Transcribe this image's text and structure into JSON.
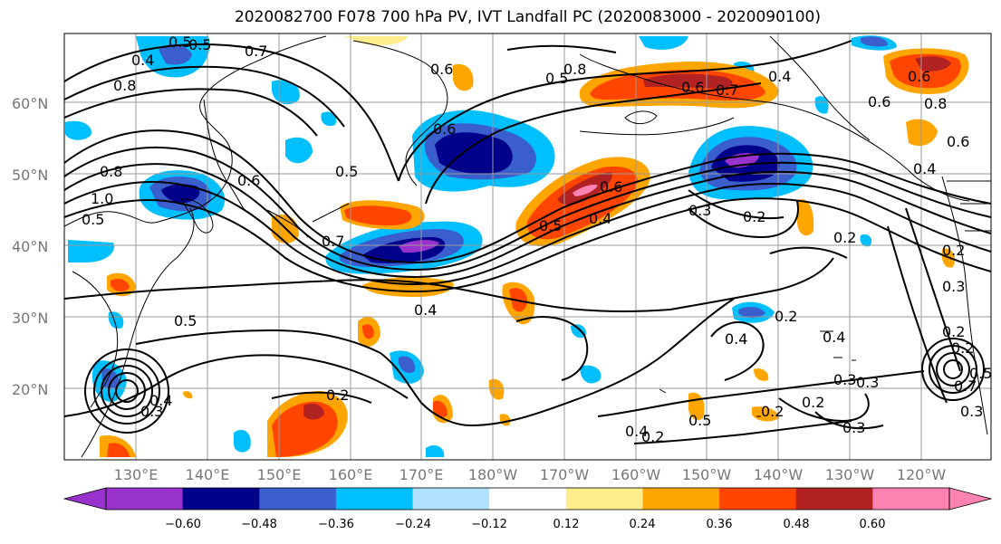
{
  "title": "2020082700 F078 700 hPa PV, IVT Landfall PC (2020083000 - 2020090100)",
  "lat_labels": [
    "60°N",
    "50°N",
    "40°N",
    "30°N",
    "20°N"
  ],
  "lon_labels": [
    "130°E",
    "140°E",
    "150°E",
    "160°E",
    "170°E",
    "180°W",
    "170°W",
    "160°W",
    "150°W",
    "140°W",
    "130°W",
    "120°W"
  ],
  "colorbar": {
    "ticks": [
      "−0.60",
      "−0.48",
      "−0.36",
      "−0.24",
      "−0.12",
      "0.12",
      "0.24",
      "0.36",
      "0.48",
      "0.60"
    ],
    "colors": [
      "#9932cc",
      "#00008b",
      "#3a5fcd",
      "#00bfff",
      "#b0e2ff",
      "#ffffff",
      "#ffec8b",
      "#ffa500",
      "#ff4500",
      "#b22222",
      "#ff83b2"
    ]
  },
  "contour_labels": [
    "0.5",
    "0.7",
    "0.4",
    "0.8",
    "0.6",
    "0.5",
    "0.8",
    "0.6",
    "0.7",
    "0.4",
    "0.5",
    "0.6",
    "0.6",
    "0.8",
    "0.6",
    "0.4",
    "0.6",
    "0.5",
    "0.7",
    "0.4",
    "0.6",
    "0.8",
    "1.0",
    "0.5",
    "0.6",
    "0.5",
    "0.4",
    "0.3",
    "0.2",
    "0.2",
    "0.3",
    "0.2",
    "0.4",
    "0.2",
    "0.3",
    "0.5",
    "0.2",
    "0.4",
    "0.2",
    "0.5",
    "0.4",
    "0.3",
    "0.2",
    "0.3",
    "0.2",
    "0.7",
    "0.5",
    "0.3",
    "0.2",
    "0.2",
    "0.3",
    "0.4"
  ],
  "colors": {
    "grid": "#9a9a9a",
    "coast": "#000000",
    "contour": "#000000",
    "axis_label": "#777777"
  }
}
